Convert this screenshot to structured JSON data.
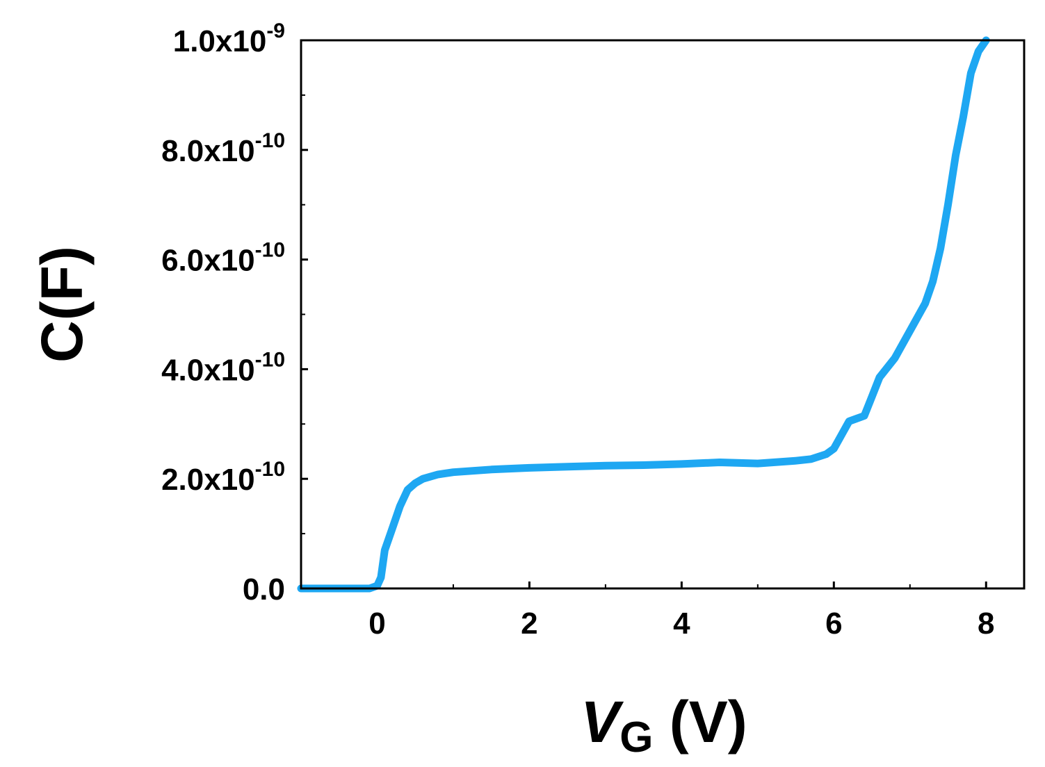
{
  "chart_data": {
    "type": "line",
    "xlabel": {
      "symbol": "V",
      "subscript": "G",
      "unit": " (V)"
    },
    "ylabel": "C(F)",
    "xlim": [
      -1,
      8.5
    ],
    "ylim": [
      0,
      1e-09
    ],
    "x_ticks": [
      {
        "value": 0,
        "label": "0"
      },
      {
        "value": 2,
        "label": "2"
      },
      {
        "value": 4,
        "label": "4"
      },
      {
        "value": 6,
        "label": "6"
      },
      {
        "value": 8,
        "label": "8"
      }
    ],
    "x_minor_ticks": [
      1,
      3,
      5,
      7
    ],
    "y_ticks": [
      {
        "value": 0,
        "mantissa": "0.0",
        "exponent": ""
      },
      {
        "value": 2e-10,
        "mantissa": "2.0x10",
        "exponent": "-10"
      },
      {
        "value": 4e-10,
        "mantissa": "4.0x10",
        "exponent": "-10"
      },
      {
        "value": 6e-10,
        "mantissa": "6.0x10",
        "exponent": "-10"
      },
      {
        "value": 8e-10,
        "mantissa": "8.0x10",
        "exponent": "-10"
      },
      {
        "value": 1e-09,
        "mantissa": "1.0x10",
        "exponent": "-9"
      }
    ],
    "y_minor_ticks": [
      1e-10,
      3e-10,
      5e-10,
      7e-10,
      9e-10
    ],
    "grid": false,
    "series": [
      {
        "color": "#1EA7F2",
        "x": [
          -1.0,
          -0.5,
          -0.1,
          0.0,
          0.05,
          0.1,
          0.2,
          0.3,
          0.4,
          0.5,
          0.6,
          0.8,
          1.0,
          1.5,
          2.0,
          2.5,
          3.0,
          3.5,
          4.0,
          4.5,
          5.0,
          5.5,
          5.7,
          5.9,
          6.0,
          6.1,
          6.2,
          6.3,
          6.4,
          6.5,
          6.6,
          6.8,
          7.0,
          7.2,
          7.3,
          7.4,
          7.5,
          7.6,
          7.7,
          7.8,
          7.9,
          8.0
        ],
        "y": [
          0,
          0,
          0,
          5e-12,
          2e-11,
          7e-11,
          1.1e-10,
          1.5e-10,
          1.8e-10,
          1.92e-10,
          2e-10,
          2.08e-10,
          2.12e-10,
          2.17e-10,
          2.2e-10,
          2.22e-10,
          2.24e-10,
          2.25e-10,
          2.27e-10,
          2.3e-10,
          2.28e-10,
          2.33e-10,
          2.36e-10,
          2.45e-10,
          2.55e-10,
          2.8e-10,
          3.05e-10,
          3.1e-10,
          3.15e-10,
          3.5e-10,
          3.85e-10,
          4.2e-10,
          4.7e-10,
          5.2e-10,
          5.6e-10,
          6.2e-10,
          7e-10,
          7.9e-10,
          8.6e-10,
          9.4e-10,
          9.8e-10,
          1e-09
        ]
      }
    ]
  }
}
